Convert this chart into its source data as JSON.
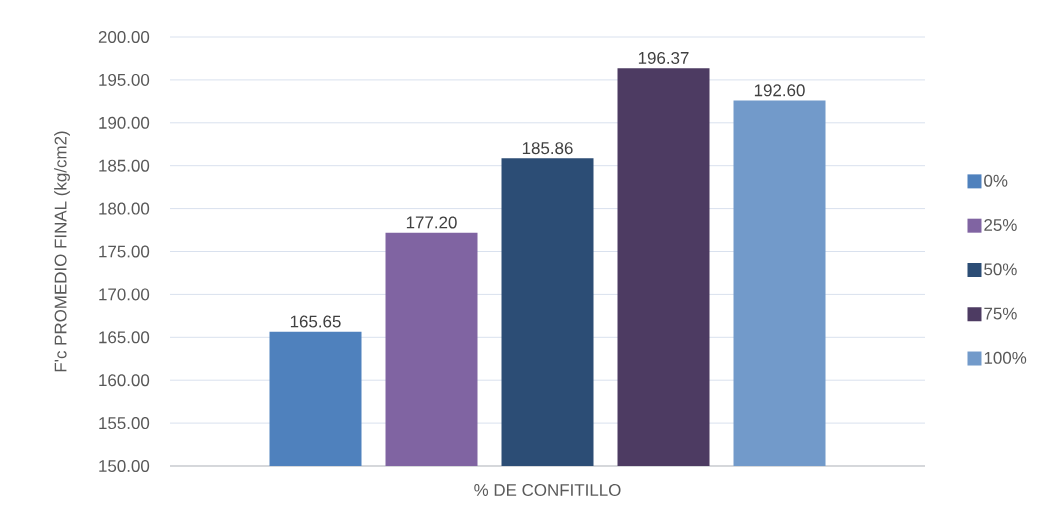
{
  "chart_data": {
    "type": "bar",
    "xlabel": "% DE CONFITILLO",
    "ylabel": "F'c PROMEDIO FINAL (kg/cm2)",
    "categories": [
      null
    ],
    "series": [
      {
        "name": "0%",
        "color": "#4f81bd",
        "values": [
          165.65
        ],
        "value_labels": [
          "165.65"
        ]
      },
      {
        "name": "25%",
        "color": "#8064a2",
        "values": [
          177.2
        ],
        "value_labels": [
          "177.20"
        ]
      },
      {
        "name": "50%",
        "color": "#2c4d75",
        "values": [
          185.86
        ],
        "value_labels": [
          "185.86"
        ]
      },
      {
        "name": "75%",
        "color": "#4d3b62",
        "values": [
          196.37
        ],
        "value_labels": [
          "196.37"
        ]
      },
      {
        "name": "100%",
        "color": "#729aca",
        "values": [
          192.6
        ],
        "value_labels": [
          "192.60"
        ]
      }
    ],
    "ylim": [
      150,
      200
    ],
    "yticks": [
      {
        "value": 150,
        "label": "150.00"
      },
      {
        "value": 155,
        "label": "155.00"
      },
      {
        "value": 160,
        "label": "160.00"
      },
      {
        "value": 165,
        "label": "165.00"
      },
      {
        "value": 170,
        "label": "170.00"
      },
      {
        "value": 175,
        "label": "175.00"
      },
      {
        "value": 180,
        "label": "180.00"
      },
      {
        "value": 185,
        "label": "185.00"
      },
      {
        "value": 190,
        "label": "190.00"
      },
      {
        "value": 195,
        "label": "195.00"
      },
      {
        "value": 200,
        "label": "200.00"
      }
    ],
    "grid": "y",
    "legend": "right"
  }
}
